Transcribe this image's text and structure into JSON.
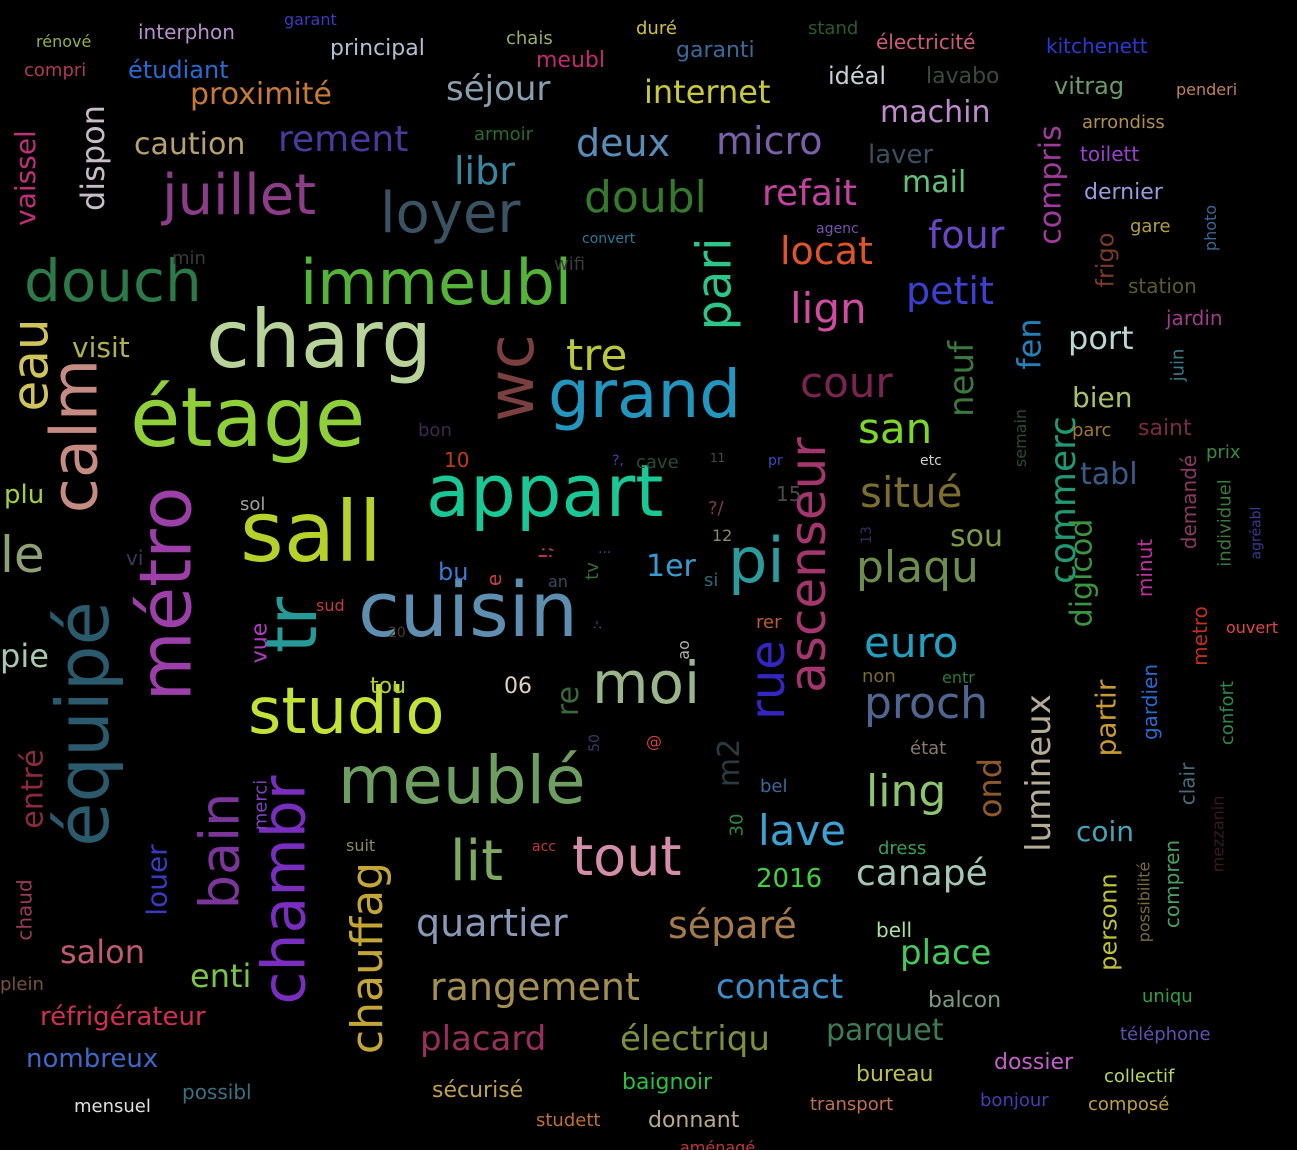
{
  "words": [
    {
      "t": "cuisin",
      "c": "#5f8fb0"
    },
    {
      "t": "appart",
      "c": "#19c895"
    },
    {
      "t": "sall",
      "c": "#b6d12c"
    },
    {
      "t": "charg",
      "c": "#b7d39a"
    },
    {
      "t": "étage",
      "c": "#8fcf3a"
    },
    {
      "t": "meublé",
      "c": "#6f9e63"
    },
    {
      "t": "studio",
      "c": "#c2e237"
    },
    {
      "t": "immeubl",
      "c": "#54b338"
    },
    {
      "t": "grand",
      "c": "#2396c0"
    },
    {
      "t": "moi",
      "c": "#9ab48c"
    },
    {
      "t": "douch",
      "c": "#2b7a48"
    },
    {
      "t": "tout",
      "c": "#d38eaa"
    },
    {
      "t": "loyer",
      "c": "#3b5262"
    },
    {
      "t": "juillet",
      "c": "#8b3d88"
    },
    {
      "t": "lit",
      "c": "#7fa860"
    },
    {
      "t": "pi",
      "c": "#2d9a9c"
    },
    {
      "t": "métro",
      "c": "#9c3fa8"
    },
    {
      "t": "équipé",
      "c": "#2a5a6c"
    },
    {
      "t": "calm",
      "c": "#c58c84"
    },
    {
      "t": "chambr",
      "c": "#7a2ec0"
    },
    {
      "t": "tr",
      "c": "#279996"
    },
    {
      "t": "wc",
      "c": "#7a4040"
    },
    {
      "t": "ascenseur",
      "c": "#a3366c"
    },
    {
      "t": "rue",
      "c": "#3426c2"
    },
    {
      "t": "bain",
      "c": "#7b3699"
    },
    {
      "t": "pari",
      "c": "#2cc58a"
    },
    {
      "t": "eau",
      "c": "#cfc45c"
    },
    {
      "t": "le",
      "c": "#8ea074"
    },
    {
      "t": "chauffag",
      "c": "#c4a636"
    },
    {
      "t": "proch",
      "c": "#4f6690"
    },
    {
      "t": "euro",
      "c": "#22a0c0"
    },
    {
      "t": "plaqu",
      "c": "#6c8d4e"
    },
    {
      "t": "situé",
      "c": "#7b6e2f"
    },
    {
      "t": "cour",
      "c": "#7a2452"
    },
    {
      "t": "san",
      "c": "#7dd62a"
    },
    {
      "t": "ling",
      "c": "#8ec46f"
    },
    {
      "t": "lave",
      "c": "#3ca2d4"
    },
    {
      "t": "canapé",
      "c": "#a3c8b8"
    },
    {
      "t": "quartier",
      "c": "#8a99ba"
    },
    {
      "t": "séparé",
      "c": "#a47a4f"
    },
    {
      "t": "rangement",
      "c": "#a48f52"
    },
    {
      "t": "contact",
      "c": "#3c8ec8"
    },
    {
      "t": "placard",
      "c": "#9a2f5c"
    },
    {
      "t": "électriqu",
      "c": "#7b8f40"
    },
    {
      "t": "parquet",
      "c": "#3f7c56"
    },
    {
      "t": "place",
      "c": "#44c860"
    },
    {
      "t": "lumineux",
      "c": "#b5ab97"
    },
    {
      "t": "commerc",
      "c": "#1f9a72"
    },
    {
      "t": "digicod",
      "c": "#3a9440"
    },
    {
      "t": "neuf",
      "c": "#3a7840"
    },
    {
      "t": "fen",
      "c": "#2480b8"
    },
    {
      "t": "port",
      "c": "#b8d8d0"
    },
    {
      "t": "bien",
      "c": "#a8c068"
    },
    {
      "t": "tabl",
      "c": "#3a5a88"
    },
    {
      "t": "sou",
      "c": "#7a9a4c"
    },
    {
      "t": "partir",
      "c": "#c89a30"
    },
    {
      "t": "coin",
      "c": "#46a4b8"
    },
    {
      "t": "ond",
      "c": "#8e5a2c"
    },
    {
      "t": "lign",
      "c": "#d04ca0"
    },
    {
      "t": "locat",
      "c": "#e0542a"
    },
    {
      "t": "refait",
      "c": "#c044a0"
    },
    {
      "t": "doubl",
      "c": "#347a2a"
    },
    {
      "t": "four",
      "c": "#6a46c0"
    },
    {
      "t": "petit",
      "c": "#3c40d0"
    },
    {
      "t": "mail",
      "c": "#64c078"
    },
    {
      "t": "micro",
      "c": "#7a60a8"
    },
    {
      "t": "deux",
      "c": "#5a8cb8"
    },
    {
      "t": "libr",
      "c": "#3a86a0"
    },
    {
      "t": "rement",
      "c": "#4a3a9c"
    },
    {
      "t": "caution",
      "c": "#b8a070"
    },
    {
      "t": "séjour",
      "c": "#8aa0b0"
    },
    {
      "t": "internet",
      "c": "#c8c83c"
    },
    {
      "t": "proximité",
      "c": "#c87a38"
    },
    {
      "t": "machin",
      "c": "#c08ad0"
    },
    {
      "t": "laver",
      "c": "#3a5060"
    },
    {
      "t": "compris",
      "c": "#a03a9c"
    },
    {
      "t": "vaissel",
      "c": "#c0307a"
    },
    {
      "t": "dispon",
      "c": "#c8bcc8"
    },
    {
      "t": "tre",
      "c": "#b8c83a"
    },
    {
      "t": "visit",
      "c": "#b0b050"
    },
    {
      "t": "salon",
      "c": "#c05a70"
    },
    {
      "t": "enti",
      "c": "#7ac44a"
    },
    {
      "t": "réfrigérateur",
      "c": "#d03050"
    },
    {
      "t": "nombreux",
      "c": "#3c68c8"
    },
    {
      "t": "pie",
      "c": "#a8c8b0"
    },
    {
      "t": "plu",
      "c": "#a0d040"
    },
    {
      "t": "entré",
      "c": "#8a2a3c"
    },
    {
      "t": "chaud",
      "c": "#9a3a5a"
    },
    {
      "t": "plein",
      "c": "#7a5040"
    },
    {
      "t": "louer",
      "c": "#3a3ac0"
    },
    {
      "t": "vue",
      "c": "#b03ac0"
    },
    {
      "t": "merci",
      "c": "#8040c0"
    },
    {
      "t": "baignoir",
      "c": "#2ac040"
    },
    {
      "t": "sécurisé",
      "c": "#c0a050"
    },
    {
      "t": "donnant",
      "c": "#b8a890"
    },
    {
      "t": "bureau",
      "c": "#c0c050"
    },
    {
      "t": "dossier",
      "c": "#c060c8"
    },
    {
      "t": "collectif",
      "c": "#b8d860"
    },
    {
      "t": "composé",
      "c": "#c0a040"
    },
    {
      "t": "téléphone",
      "c": "#6050b0"
    },
    {
      "t": "bonjour",
      "c": "#4040b0"
    },
    {
      "t": "transport",
      "c": "#c07050"
    },
    {
      "t": "studett",
      "c": "#c07030"
    },
    {
      "t": "mensuel",
      "c": "#e0e0e0"
    },
    {
      "t": "possibl",
      "c": "#3a7080"
    },
    {
      "t": "uniqu",
      "c": "#30a040"
    },
    {
      "t": "balcon",
      "c": "#7a9a80"
    },
    {
      "t": "bell",
      "c": "#a8e0a0"
    },
    {
      "t": "personn",
      "c": "#c0c038"
    },
    {
      "t": "possibilité",
      "c": "#7a6a40"
    },
    {
      "t": "compren",
      "c": "#48a060"
    },
    {
      "t": "clair",
      "c": "#4a6a7a"
    },
    {
      "t": "mezzanin",
      "c": "#3a1a24"
    },
    {
      "t": "confort",
      "c": "#2a8a4a"
    },
    {
      "t": "gardien",
      "c": "#2a6ad0"
    },
    {
      "t": "metro",
      "c": "#c03020"
    },
    {
      "t": "ouvert",
      "c": "#e04848"
    },
    {
      "t": "minut",
      "c": "#c030a0"
    },
    {
      "t": "demandé",
      "c": "#8a3a60"
    },
    {
      "t": "individuel",
      "c": "#3a7a3a"
    },
    {
      "t": "agréabl",
      "c": "#3a3a90"
    },
    {
      "t": "prix",
      "c": "#3a8a40"
    },
    {
      "t": "saint",
      "c": "#7a2a48"
    },
    {
      "t": "parc",
      "c": "#a07a30"
    },
    {
      "t": "semain",
      "c": "#2a4a3a"
    },
    {
      "t": "juin",
      "c": "#3a7a8a"
    },
    {
      "t": "jardin",
      "c": "#a03a8a"
    },
    {
      "t": "station",
      "c": "#5a5a30"
    },
    {
      "t": "frigo",
      "c": "#7a3a2a"
    },
    {
      "t": "gare",
      "c": "#b0a040"
    },
    {
      "t": "photo",
      "c": "#3a6a9a"
    },
    {
      "t": "dernier",
      "c": "#9a9ae0"
    },
    {
      "t": "toilett",
      "c": "#9a40d0"
    },
    {
      "t": "arrondiss",
      "c": "#b09050"
    },
    {
      "t": "penderi",
      "c": "#c08060"
    },
    {
      "t": "vitrag",
      "c": "#6a9a6a"
    },
    {
      "t": "kitchenett",
      "c": "#2a3ad0"
    },
    {
      "t": "électricité",
      "c": "#d05a78"
    },
    {
      "t": "lavabo",
      "c": "#3a4a40"
    },
    {
      "t": "idéal",
      "c": "#c8d0d8"
    },
    {
      "t": "stand",
      "c": "#2a5a2a"
    },
    {
      "t": "duré",
      "c": "#d0c040"
    },
    {
      "t": "garanti",
      "c": "#3a6a9a"
    },
    {
      "t": "meubl",
      "c": "#c02a70"
    },
    {
      "t": "chais",
      "c": "#9ab060"
    },
    {
      "t": "principal",
      "c": "#b0c0d0"
    },
    {
      "t": "garant",
      "c": "#3a3ac0"
    },
    {
      "t": "interphon",
      "c": "#b890d0"
    },
    {
      "t": "rénové",
      "c": "#90b050"
    },
    {
      "t": "compri",
      "c": "#b03a5a"
    },
    {
      "t": "étudiant",
      "c": "#2a6ad0"
    },
    {
      "t": "armoir",
      "c": "#2a6a2a"
    },
    {
      "t": "convert",
      "c": "#2a7a9a"
    },
    {
      "t": "wifi",
      "c": "#3a3a3a"
    },
    {
      "t": "min",
      "c": "#3a3a3a"
    },
    {
      "t": "agenc",
      "c": "#7a50b0"
    },
    {
      "t": "bon",
      "c": "#3a2a4a"
    },
    {
      "t": "10",
      "c": "#c03a20"
    },
    {
      "t": "?,",
      "c": "#4a3ab0"
    },
    {
      "t": "cave",
      "c": "#2a4a3a"
    },
    {
      "t": "11",
      "c": "#4a4a4a"
    },
    {
      "t": "pr",
      "c": "#3a4ac0"
    },
    {
      "t": "etc",
      "c": "#d0d0d0"
    },
    {
      "t": "15",
      "c": "#4a4a4a"
    },
    {
      "t": "?/",
      "c": "#7a3a5a"
    },
    {
      "t": "12",
      "c": "#8a8a6a"
    },
    {
      "t": "13",
      "c": "#3a2a5a"
    },
    {
      "t": "sol",
      "c": "#a0a0a0"
    },
    {
      "t": "vi",
      "c": "#3a3a5a"
    },
    {
      "t": "bu",
      "c": "#3a7ad0"
    },
    {
      "t": "e",
      "c": "#c04040"
    },
    {
      "t": "an",
      "c": "#3a4a60"
    },
    {
      "t": "tv",
      "c": "#3a6a3a"
    },
    {
      "t": "1er",
      "c": "#3a9ad0"
    },
    {
      "t": "si",
      "c": "#2a6a7a"
    },
    {
      "t": "!;",
      "c": "#c03a70"
    },
    {
      "t": "...",
      "c": "#2a4a9a"
    },
    {
      "t": "sud",
      "c": "#c03a40"
    },
    {
      "t": "20",
      "c": "#4a3a2a"
    },
    {
      "t": ":-",
      "c": "#3a4a8a"
    },
    {
      "t": "ao",
      "c": "#b0b0b0"
    },
    {
      "t": "rer",
      "c": "#c05a2a"
    },
    {
      "t": "tou",
      "c": "#b0d030"
    },
    {
      "t": "06",
      "c": "#e0d0c0"
    },
    {
      "t": "re",
      "c": "#3a6a3a"
    },
    {
      "t": "50",
      "c": "#3a3a6a"
    },
    {
      "t": "@",
      "c": "#d04040"
    },
    {
      "t": "m2",
      "c": "#2a3a40"
    },
    {
      "t": "non",
      "c": "#7a6a30"
    },
    {
      "t": "entr",
      "c": "#2a7a3a"
    },
    {
      "t": "état",
      "c": "#8a7a6a"
    },
    {
      "t": "bel",
      "c": "#3a6a9a"
    },
    {
      "t": "30",
      "c": "#2a8a3a"
    },
    {
      "t": "suit",
      "c": "#8a8a60"
    },
    {
      "t": "acc",
      "c": "#c03a30"
    },
    {
      "t": "dress",
      "c": "#3aa050"
    },
    {
      "t": "2016",
      "c": "#40d040"
    },
    {
      "t": "aménagé",
      "c": "#c03a3a"
    }
  ]
}
